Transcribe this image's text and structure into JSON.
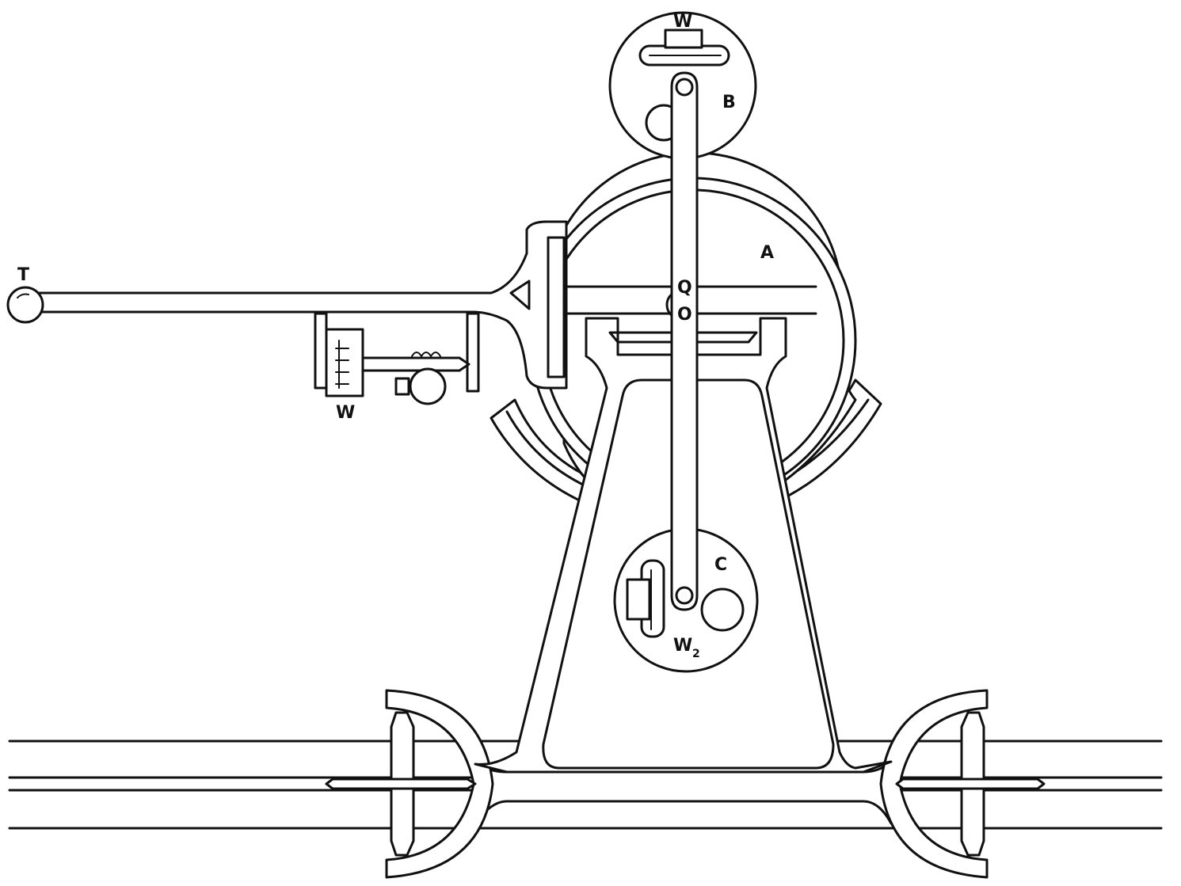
{
  "labels": {
    "t": "T",
    "a": "A",
    "b": "B",
    "c": "C",
    "q": "Q",
    "o": "O",
    "w_top": "W",
    "w_left": "W",
    "w2_main": "W",
    "w2_sub": "2"
  },
  "colors": {
    "ink": "#111111",
    "paper": "#ffffff"
  }
}
